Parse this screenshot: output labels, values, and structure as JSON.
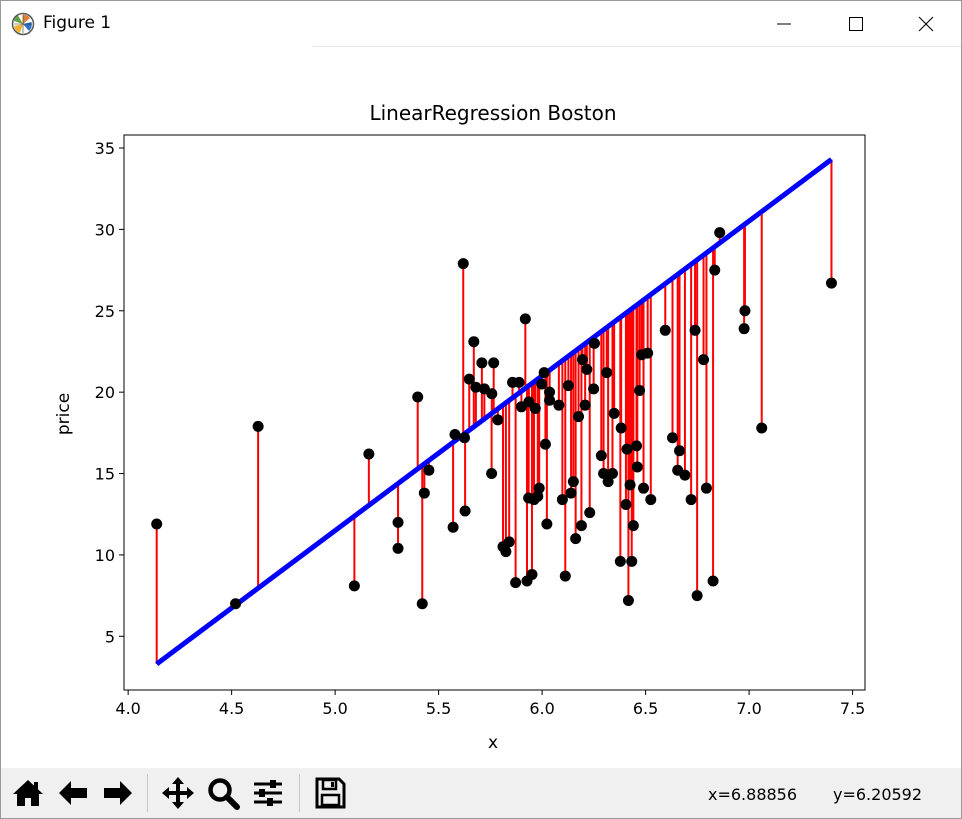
{
  "window": {
    "title": "Figure 1"
  },
  "toolbar": {
    "tools": [
      {
        "name": "home",
        "icon": "home-icon"
      },
      {
        "name": "back",
        "icon": "arrow-left-icon"
      },
      {
        "name": "forward",
        "icon": "arrow-right-icon"
      },
      {
        "name": "pan",
        "icon": "move-icon"
      },
      {
        "name": "zoom",
        "icon": "magnifier-icon"
      },
      {
        "name": "configure",
        "icon": "sliders-icon"
      },
      {
        "name": "save",
        "icon": "floppy-icon"
      }
    ],
    "coord_x": "x=6.88856",
    "coord_y": "y=6.20592"
  },
  "chart_data": {
    "type": "scatter",
    "title": "LinearRegression Boston",
    "xlabel": "x",
    "ylabel": "price",
    "xlim": [
      3.98,
      7.56
    ],
    "ylim": [
      1.7,
      35.8
    ],
    "xticks": [
      "4.0",
      "4.5",
      "5.0",
      "5.5",
      "6.0",
      "6.5",
      "7.0",
      "7.5"
    ],
    "yticks": [
      "5",
      "10",
      "15",
      "20",
      "25",
      "30",
      "35"
    ],
    "colors": {
      "points": "#000000",
      "fit_line": "#0000ff",
      "residuals": "#ff0000"
    },
    "fit_line": {
      "x": [
        4.138,
        7.398
      ],
      "y": [
        3.3,
        34.3
      ]
    },
    "points": {
      "x": [
        4.138,
        4.519,
        4.628,
        5.093,
        5.163,
        5.304,
        5.304,
        5.399,
        5.421,
        5.431,
        5.453,
        5.57,
        5.579,
        5.619,
        5.625,
        5.628,
        5.648,
        5.67,
        5.68,
        5.709,
        5.721,
        5.756,
        5.757,
        5.766,
        5.786,
        5.811,
        5.825,
        5.841,
        5.857,
        5.872,
        5.889,
        5.9,
        5.919,
        5.927,
        5.935,
        5.936,
        5.951,
        5.961,
        5.967,
        5.979,
        5.986,
        5.998,
        6.01,
        6.016,
        6.023,
        6.036,
        6.036,
        6.081,
        6.098,
        6.112,
        6.127,
        6.14,
        6.151,
        6.162,
        6.176,
        6.19,
        6.195,
        6.208,
        6.216,
        6.23,
        6.249,
        6.253,
        6.286,
        6.297,
        6.312,
        6.319,
        6.34,
        6.348,
        6.378,
        6.382,
        6.405,
        6.41,
        6.417,
        6.425,
        6.433,
        6.441,
        6.456,
        6.46,
        6.471,
        6.481,
        6.49,
        6.51,
        6.525,
        6.595,
        6.63,
        6.655,
        6.664,
        6.69,
        6.72,
        6.739,
        6.749,
        6.78,
        6.794,
        6.826,
        6.834,
        6.858,
        6.976,
        6.98,
        7.061,
        7.398
      ],
      "y": [
        11.9,
        7.0,
        17.9,
        8.1,
        16.2,
        12.0,
        10.4,
        19.7,
        7.0,
        13.8,
        15.2,
        11.7,
        17.4,
        27.9,
        17.2,
        12.7,
        20.8,
        23.1,
        20.3,
        21.8,
        20.2,
        15.0,
        19.9,
        21.8,
        18.3,
        10.5,
        10.2,
        10.8,
        20.6,
        8.3,
        20.6,
        19.1,
        24.5,
        8.4,
        13.5,
        19.4,
        8.8,
        13.4,
        19.0,
        13.6,
        14.1,
        20.5,
        21.2,
        16.8,
        11.9,
        20.0,
        19.5,
        19.2,
        13.4,
        8.7,
        20.4,
        13.8,
        14.5,
        11.0,
        18.5,
        11.8,
        22.0,
        19.2,
        21.4,
        12.6,
        20.2,
        23.0,
        16.1,
        15.0,
        21.2,
        14.5,
        15.0,
        18.7,
        9.6,
        17.8,
        13.1,
        16.5,
        7.2,
        14.3,
        9.6,
        11.8,
        16.7,
        15.4,
        20.1,
        22.3,
        14.1,
        22.4,
        13.4,
        23.8,
        17.2,
        15.2,
        16.4,
        14.9,
        13.4,
        23.8,
        7.5,
        22.0,
        14.1,
        8.4,
        27.5,
        29.8,
        23.9,
        25.0,
        17.8,
        26.7
      ]
    }
  }
}
